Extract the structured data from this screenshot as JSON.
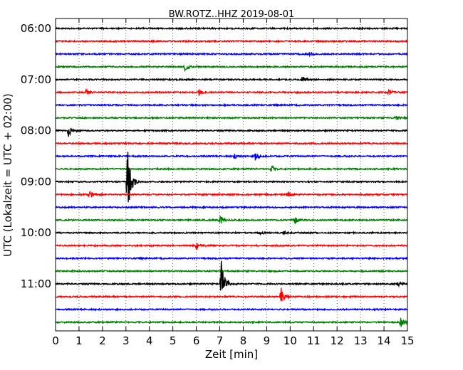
{
  "chart_data": {
    "type": "line",
    "title": "BW.ROTZ..HHZ 2019-08-01",
    "xlabel": "Zeit  [min]",
    "ylabel": "UTC (Lokalzeit = UTC + 02:00)",
    "xlim": [
      0,
      15
    ],
    "x_ticks": [
      "0",
      "1",
      "2",
      "3",
      "4",
      "5",
      "6",
      "7",
      "8",
      "9",
      "10",
      "11",
      "12",
      "13",
      "14",
      "15"
    ],
    "y_ticks": [
      "06:00",
      "07:00",
      "08:00",
      "09:00",
      "10:00",
      "11:00"
    ],
    "grid": "vertical-dotted",
    "trace_interval_min": 15,
    "color_cycle": [
      "#000000",
      "#ff0000",
      "#0000ff",
      "#008000"
    ],
    "traces": [
      {
        "start": "06:00",
        "events": []
      },
      {
        "start": "06:15",
        "events": []
      },
      {
        "start": "06:30",
        "events": [
          {
            "t": 10.8,
            "amp": 0.15
          }
        ]
      },
      {
        "start": "06:45",
        "events": [
          {
            "t": 5.5,
            "amp": 0.3
          }
        ]
      },
      {
        "start": "07:00",
        "events": [
          {
            "t": 10.5,
            "amp": 0.3
          }
        ]
      },
      {
        "start": "07:15",
        "events": [
          {
            "t": 1.3,
            "amp": 0.2
          },
          {
            "t": 6.1,
            "amp": 0.25
          },
          {
            "t": 14.2,
            "amp": 0.2
          }
        ]
      },
      {
        "start": "07:30",
        "events": []
      },
      {
        "start": "07:45",
        "events": [
          {
            "t": 14.5,
            "amp": 0.2
          }
        ]
      },
      {
        "start": "08:00",
        "events": [
          {
            "t": 0.55,
            "amp": 0.5
          }
        ]
      },
      {
        "start": "08:15",
        "events": []
      },
      {
        "start": "08:30",
        "events": [
          {
            "t": 8.5,
            "amp": 0.35
          },
          {
            "t": 7.6,
            "amp": 0.2
          }
        ]
      },
      {
        "start": "08:45",
        "events": [
          {
            "t": 9.2,
            "amp": 0.25
          }
        ]
      },
      {
        "start": "09:00",
        "events": [
          {
            "t": 3.05,
            "amp": 3.2
          }
        ]
      },
      {
        "start": "09:15",
        "events": [
          {
            "t": 1.4,
            "amp": 0.55
          },
          {
            "t": 9.9,
            "amp": 0.2
          }
        ]
      },
      {
        "start": "09:30",
        "events": []
      },
      {
        "start": "09:45",
        "events": [
          {
            "t": 7.0,
            "amp": 0.4
          },
          {
            "t": 10.2,
            "amp": 0.3
          }
        ]
      },
      {
        "start": "10:00",
        "events": [
          {
            "t": 8.7,
            "amp": 0.2
          },
          {
            "t": 9.7,
            "amp": 0.15
          }
        ]
      },
      {
        "start": "10:15",
        "events": [
          {
            "t": 6.0,
            "amp": 0.3
          }
        ]
      },
      {
        "start": "10:30",
        "events": []
      },
      {
        "start": "10:45",
        "events": []
      },
      {
        "start": "11:00",
        "events": [
          {
            "t": 7.05,
            "amp": 2.2
          },
          {
            "t": 14.6,
            "amp": 0.15
          }
        ]
      },
      {
        "start": "11:15",
        "events": [
          {
            "t": 9.6,
            "amp": 0.9
          }
        ]
      },
      {
        "start": "11:30",
        "events": []
      },
      {
        "start": "11:45",
        "events": [
          {
            "t": 14.7,
            "amp": 0.5
          }
        ]
      }
    ]
  }
}
